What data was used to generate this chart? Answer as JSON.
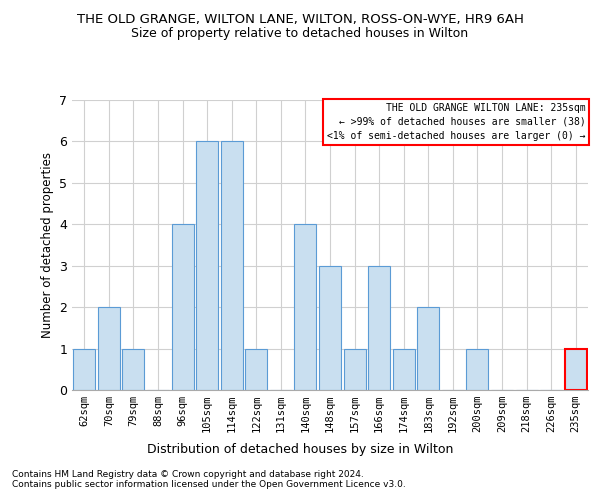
{
  "title1": "THE OLD GRANGE, WILTON LANE, WILTON, ROSS-ON-WYE, HR9 6AH",
  "title2": "Size of property relative to detached houses in Wilton",
  "xlabel": "Distribution of detached houses by size in Wilton",
  "ylabel": "Number of detached properties",
  "categories": [
    "62sqm",
    "70sqm",
    "79sqm",
    "88sqm",
    "96sqm",
    "105sqm",
    "114sqm",
    "122sqm",
    "131sqm",
    "140sqm",
    "148sqm",
    "157sqm",
    "166sqm",
    "174sqm",
    "183sqm",
    "192sqm",
    "200sqm",
    "209sqm",
    "218sqm",
    "226sqm",
    "235sqm"
  ],
  "values": [
    1,
    2,
    1,
    0,
    4,
    6,
    6,
    1,
    0,
    4,
    3,
    1,
    3,
    1,
    2,
    0,
    1,
    0,
    0,
    0,
    1
  ],
  "highlight_index": 20,
  "bar_color": "#c9dff0",
  "bar_edge_color": "#5b9bd5",
  "highlight_bar_edge_color": "#ff0000",
  "ylim": [
    0,
    7
  ],
  "yticks": [
    0,
    1,
    2,
    3,
    4,
    5,
    6,
    7
  ],
  "legend_title": "THE OLD GRANGE WILTON LANE: 235sqm",
  "legend_line1": "← >99% of detached houses are smaller (38)",
  "legend_line2": "<1% of semi-detached houses are larger (0) →",
  "footnote1": "Contains HM Land Registry data © Crown copyright and database right 2024.",
  "footnote2": "Contains public sector information licensed under the Open Government Licence v3.0.",
  "grid_color": "#d0d0d0",
  "background_color": "#ffffff"
}
